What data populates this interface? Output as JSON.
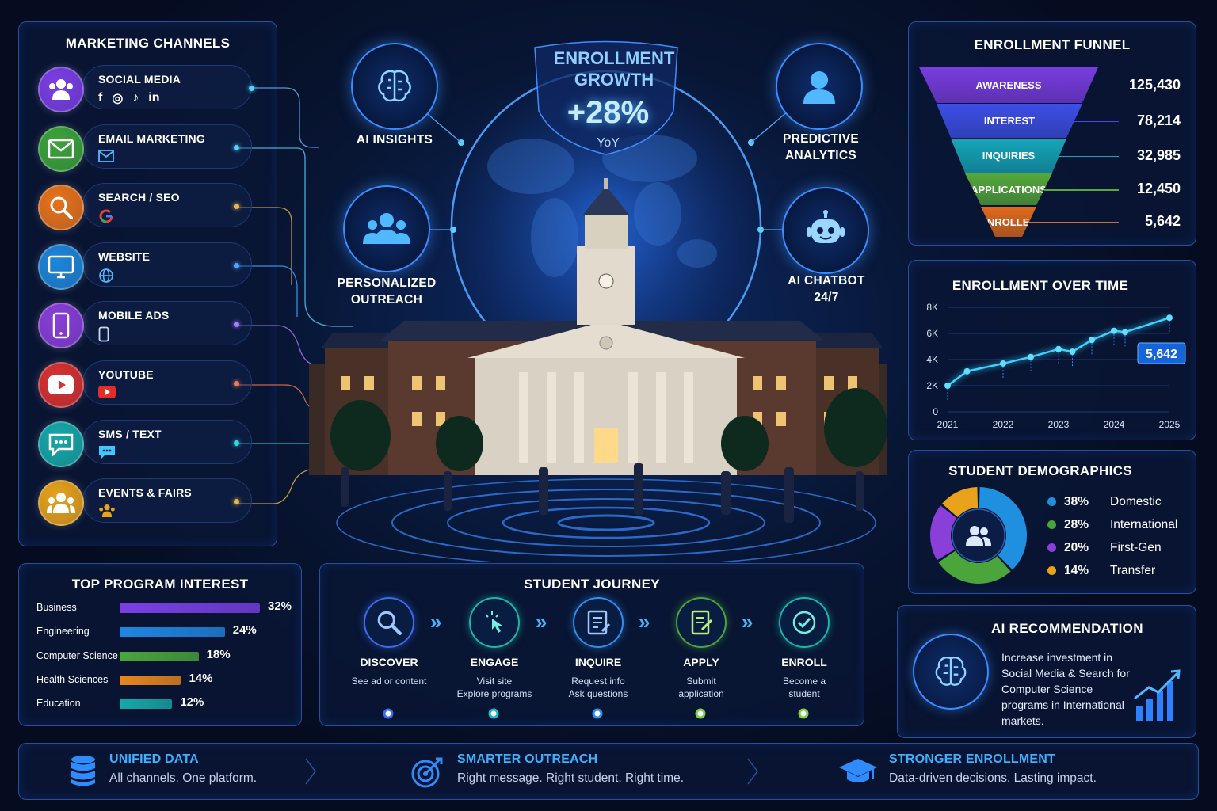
{
  "channels": {
    "title": "MARKETING CHANNELS",
    "items": [
      {
        "label": "SOCIAL MEDIA",
        "icon": "users-icon",
        "color": "#7b3fe4"
      },
      {
        "label": "EMAIL MARKETING",
        "icon": "envelope-icon",
        "color": "#3da43a"
      },
      {
        "label": "SEARCH / SEO",
        "icon": "search-icon",
        "color": "#e8731b"
      },
      {
        "label": "WEBSITE",
        "icon": "monitor-icon",
        "color": "#1f86d9"
      },
      {
        "label": "MOBILE ADS",
        "icon": "phone-icon",
        "color": "#8a3fd8"
      },
      {
        "label": "YOUTUBE",
        "icon": "play-icon",
        "color": "#d93232"
      },
      {
        "label": "SMS / TEXT",
        "icon": "chat-icon",
        "color": "#17a8a8"
      },
      {
        "label": "EVENTS & FAIRS",
        "icon": "group-icon",
        "color": "#e8a21b"
      }
    ],
    "social_icons": [
      "f",
      "◎",
      "♪",
      "in"
    ]
  },
  "hero": {
    "title_line1": "ENROLLMENT",
    "title_line2": "GROWTH",
    "value": "+28%",
    "unit": "YoY",
    "features": [
      {
        "label": "AI INSIGHTS",
        "icon": "brain-icon"
      },
      {
        "label": "PREDICTIVE\nANALYTICS",
        "icon": "person-icon"
      },
      {
        "label": "PERSONALIZED\nOUTREACH",
        "icon": "group-icon"
      },
      {
        "label": "AI CHATBOT\n24/7",
        "icon": "robot-icon"
      }
    ]
  },
  "funnel": {
    "title": "ENROLLMENT FUNNEL",
    "stages": [
      {
        "label": "AWARENESS",
        "value": "125,430",
        "color": "#7a3ce0"
      },
      {
        "label": "INTEREST",
        "value": "78,214",
        "color": "#3d4fe6"
      },
      {
        "label": "INQUIRIES",
        "value": "32,985",
        "color": "#16a6b8"
      },
      {
        "label": "APPLICATIONS",
        "value": "12,450",
        "color": "#55a83a"
      },
      {
        "label": "ENROLLED",
        "value": "5,642",
        "color": "#e06a1c"
      }
    ]
  },
  "chart_data": {
    "type": "line",
    "title": "ENROLLMENT OVER TIME",
    "x_ticks": [
      "2021",
      "2022",
      "2023",
      "2024",
      "2025"
    ],
    "y_ticks": [
      "8K",
      "6K",
      "4K",
      "2K",
      "0"
    ],
    "ylim": [
      0,
      8000
    ],
    "x": [
      2021.0,
      2021.35,
      2022.0,
      2022.5,
      2023.0,
      2023.25,
      2023.6,
      2024.0,
      2024.2,
      2025.0
    ],
    "values": [
      2000,
      3100,
      3700,
      4200,
      4800,
      4600,
      5500,
      6200,
      6100,
      7200
    ],
    "callout": "5,642",
    "grid": true
  },
  "demographics": {
    "title": "STUDENT DEMOGRAPHICS",
    "segments": [
      {
        "pct": "38%",
        "value": 38,
        "label": "Domestic",
        "color": "#1f8fe0"
      },
      {
        "pct": "28%",
        "value": 28,
        "label": "International",
        "color": "#4aa53a"
      },
      {
        "pct": "20%",
        "value": 20,
        "label": "First-Gen",
        "color": "#8a3fd8"
      },
      {
        "pct": "14%",
        "value": 14,
        "label": "Transfer",
        "color": "#e8a21b"
      }
    ]
  },
  "programs": {
    "title": "TOP PROGRAM INTEREST",
    "items": [
      {
        "label": "Business",
        "pct": "32%",
        "value": 32,
        "color": "#7b3fe4"
      },
      {
        "label": "Engineering",
        "pct": "24%",
        "value": 24,
        "color": "#1f86e0"
      },
      {
        "label": "Computer Science",
        "pct": "18%",
        "value": 18,
        "color": "#4aa53a"
      },
      {
        "label": "Health Sciences",
        "pct": "14%",
        "value": 14,
        "color": "#e8861b"
      },
      {
        "label": "Education",
        "pct": "12%",
        "value": 12,
        "color": "#17a8a8"
      }
    ]
  },
  "journey": {
    "title": "STUDENT JOURNEY",
    "steps": [
      {
        "title": "DISCOVER",
        "desc": "See ad or content",
        "icon": "search-icon",
        "color": "#3a6cf0"
      },
      {
        "title": "ENGAGE",
        "desc": "Visit site\nExplore programs",
        "icon": "pointer-icon",
        "color": "#17b8a8"
      },
      {
        "title": "INQUIRE",
        "desc": "Request info\nAsk questions",
        "icon": "form-icon",
        "color": "#2f8ff0"
      },
      {
        "title": "APPLY",
        "desc": "Submit\napplication",
        "icon": "document-icon",
        "color": "#4aa53a"
      },
      {
        "title": "ENROLL",
        "desc": "Become a\nstudent",
        "icon": "check-icon",
        "color": "#17b8a8"
      }
    ]
  },
  "recommendation": {
    "title": "AI RECOMMENDATION",
    "text": "Increase investment in Social Media & Search for Computer Science programs in International markets."
  },
  "footer": [
    {
      "title": "UNIFIED DATA",
      "sub": "All channels. One platform.",
      "icon": "database-icon"
    },
    {
      "title": "SMARTER OUTREACH",
      "sub": "Right message. Right student. Right time.",
      "icon": "target-icon"
    },
    {
      "title": "STRONGER ENROLLMENT",
      "sub": "Data-driven decisions. Lasting impact.",
      "icon": "graduation-cap-icon"
    }
  ]
}
